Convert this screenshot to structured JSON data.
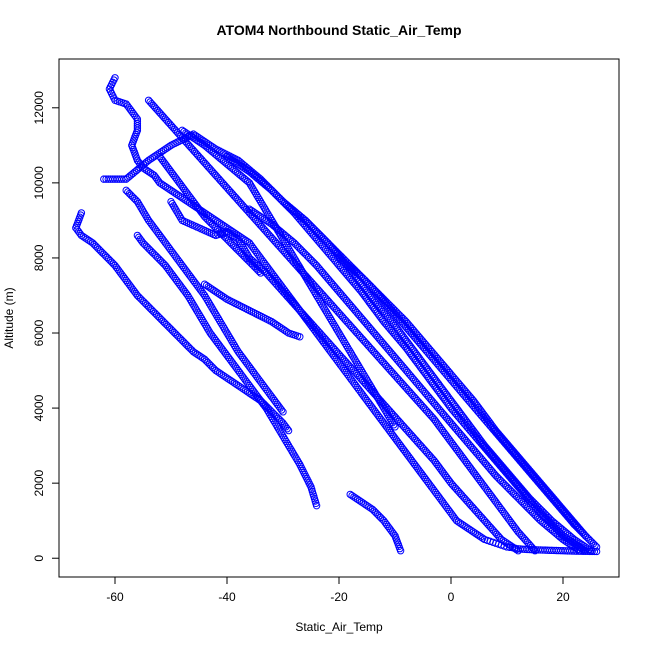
{
  "chart_data": {
    "type": "scatter",
    "title": "ATOM4 Northbound Static_Air_Temp",
    "xlabel": "Static_Air_Temp",
    "ylabel": "Altitude (m)",
    "xlim": [
      -70,
      30
    ],
    "ylim": [
      -500,
      13300
    ],
    "x_ticks": [
      -60,
      -40,
      -20,
      0,
      20
    ],
    "y_ticks": [
      0,
      2000,
      4000,
      6000,
      8000,
      10000,
      12000
    ],
    "grid": false,
    "legend": "none",
    "marker": "open-circle",
    "marker_color": "#0000ff",
    "series": [
      {
        "x": [
          -60,
          -61,
          -60,
          -58,
          -56,
          -56,
          -57,
          -56,
          -55,
          -53,
          -52,
          -50,
          -48,
          -46,
          -44,
          -42,
          -40,
          -38,
          -36,
          -35,
          -34,
          -33,
          -32,
          -31,
          -30,
          -29,
          -28,
          -27,
          -26,
          -25,
          -24,
          -23,
          -22,
          -21,
          -20,
          -19,
          -18,
          -17,
          -16,
          -15,
          -14,
          -13,
          -12,
          -11,
          -10,
          -9,
          -8,
          -7,
          -6,
          -5,
          -4,
          -3,
          -2,
          -1,
          0,
          1,
          2,
          3,
          4,
          5,
          6,
          7,
          8,
          9,
          10,
          11,
          12,
          14,
          16,
          18,
          20,
          22,
          24,
          26
        ],
        "y": [
          12800,
          12500,
          12200,
          12100,
          11700,
          11400,
          11000,
          10600,
          10400,
          10200,
          10000,
          9800,
          9600,
          9400,
          9200,
          9000,
          8800,
          8600,
          8400,
          8200,
          8000,
          7800,
          7600,
          7400,
          7200,
          7000,
          6800,
          6600,
          6400,
          6200,
          6000,
          5800,
          5600,
          5400,
          5200,
          5000,
          4800,
          4600,
          4400,
          4200,
          4000,
          3800,
          3600,
          3400,
          3200,
          3000,
          2800,
          2600,
          2400,
          2200,
          2000,
          1800,
          1600,
          1400,
          1200,
          1000,
          900,
          800,
          700,
          600,
          500,
          450,
          400,
          350,
          300,
          280,
          250,
          230,
          220,
          210,
          200,
          190,
          185,
          180
        ]
      },
      {
        "x": [
          -62,
          -58,
          -54,
          -50,
          -46,
          -42,
          -38,
          -34,
          -30,
          -26,
          -22,
          -18,
          -14,
          -10,
          -6,
          -2,
          2,
          6,
          10,
          14,
          18,
          22,
          25
        ],
        "y": [
          10100,
          10100,
          10600,
          11000,
          11300,
          10900,
          10600,
          10100,
          9500,
          9000,
          8400,
          7700,
          6900,
          6200,
          5400,
          4600,
          3800,
          3000,
          2300,
          1600,
          1000,
          500,
          200
        ]
      },
      {
        "x": [
          -54,
          -51,
          -48,
          -45,
          -42,
          -39,
          -36,
          -33,
          -30,
          -27,
          -24,
          -21,
          -18,
          -15,
          -12,
          -9,
          -6,
          -3,
          0,
          3,
          6,
          9,
          12,
          15
        ],
        "y": [
          12200,
          11700,
          11200,
          10700,
          10200,
          9700,
          9200,
          8700,
          8200,
          7700,
          7200,
          6700,
          6200,
          5700,
          5200,
          4700,
          4200,
          3700,
          3100,
          2500,
          1900,
          1300,
          700,
          200
        ]
      },
      {
        "x": [
          -50,
          -48,
          -45,
          -42,
          -40,
          -38,
          -36,
          -33,
          -30,
          -27,
          -24,
          -21,
          -18,
          -15,
          -12,
          -9,
          -6,
          -3,
          0,
          3,
          6,
          9,
          12
        ],
        "y": [
          9500,
          9000,
          8800,
          8600,
          8700,
          8500,
          8000,
          7600,
          7100,
          6600,
          6100,
          5600,
          5100,
          4600,
          4100,
          3600,
          3100,
          2600,
          2000,
          1500,
          1000,
          500,
          200
        ]
      },
      {
        "x": [
          -66,
          -67,
          -66,
          -64,
          -62,
          -60,
          -58,
          -56,
          -54,
          -52,
          -50,
          -48,
          -46,
          -44,
          -42,
          -40,
          -38,
          -36,
          -34,
          -32,
          -30,
          -29
        ],
        "y": [
          9200,
          8800,
          8600,
          8400,
          8100,
          7800,
          7400,
          7000,
          6700,
          6400,
          6100,
          5800,
          5500,
          5300,
          5000,
          4800,
          4600,
          4400,
          4200,
          3900,
          3600,
          3400
        ]
      },
      {
        "x": [
          -56,
          -55,
          -53,
          -51,
          -49,
          -47,
          -45,
          -43,
          -41,
          -39,
          -37,
          -35,
          -33,
          -31,
          -29,
          -27,
          -25,
          -24
        ],
        "y": [
          8600,
          8400,
          8100,
          7800,
          7400,
          7000,
          6500,
          6000,
          5600,
          5200,
          4800,
          4400,
          4000,
          3500,
          3000,
          2500,
          1900,
          1400
        ]
      },
      {
        "x": [
          -58,
          -56,
          -54,
          -52,
          -50,
          -48,
          -46,
          -44,
          -42,
          -40,
          -38,
          -36,
          -34,
          -32,
          -30
        ],
        "y": [
          9800,
          9500,
          9000,
          8600,
          8200,
          7800,
          7400,
          7000,
          6500,
          6000,
          5500,
          5100,
          4700,
          4300,
          3900
        ]
      },
      {
        "x": [
          -40,
          -36,
          -32,
          -28,
          -24,
          -20,
          -16,
          -12,
          -8,
          -4,
          0,
          4,
          8,
          12,
          16,
          20,
          24
        ],
        "y": [
          10700,
          10300,
          9800,
          9200,
          8500,
          7800,
          7100,
          6300,
          5600,
          4800,
          4000,
          3300,
          2600,
          1900,
          1200,
          600,
          200
        ]
      },
      {
        "x": [
          -30,
          -26,
          -22,
          -18,
          -14,
          -10,
          -6,
          -2,
          2,
          6,
          10,
          14,
          18,
          22,
          26
        ],
        "y": [
          9500,
          9000,
          8400,
          7800,
          7200,
          6500,
          5800,
          5100,
          4400,
          3700,
          3000,
          2300,
          1600,
          900,
          300
        ]
      },
      {
        "x": [
          -20,
          -16,
          -12,
          -8,
          -4,
          0,
          4,
          8,
          12,
          16,
          20,
          24
        ],
        "y": [
          8000,
          7500,
          6900,
          6300,
          5600,
          4900,
          4200,
          3400,
          2700,
          2000,
          1300,
          600
        ]
      },
      {
        "x": [
          -18,
          -16,
          -14,
          -12,
          -10,
          -9
        ],
        "y": [
          1700,
          1500,
          1300,
          1000,
          600,
          200
        ]
      },
      {
        "x": [
          -44,
          -40,
          -36,
          -32,
          -29,
          -27
        ],
        "y": [
          7300,
          6900,
          6600,
          6300,
          6000,
          5900
        ]
      },
      {
        "x": [
          -48,
          -44,
          -40,
          -36,
          -34,
          -32,
          -30,
          -28,
          -26,
          -24,
          -22,
          -20,
          -18,
          -16,
          -14,
          -12,
          -10
        ],
        "y": [
          11400,
          11000,
          10500,
          10000,
          9500,
          9000,
          8500,
          8000,
          7500,
          7000,
          6500,
          6000,
          5500,
          5000,
          4500,
          4000,
          3500
        ]
      },
      {
        "x": [
          -52,
          -50,
          -48,
          -46,
          -44,
          -42,
          -40,
          -38,
          -36,
          -34
        ],
        "y": [
          10700,
          10300,
          9900,
          9500,
          9100,
          8800,
          8500,
          8200,
          7900,
          7600
        ]
      },
      {
        "x": [
          -36,
          -32,
          -28,
          -24,
          -20,
          -16,
          -12,
          -8,
          -4,
          0,
          4,
          8,
          12,
          16,
          20,
          23
        ],
        "y": [
          9300,
          8900,
          8400,
          7800,
          7100,
          6400,
          5700,
          5000,
          4300,
          3600,
          2900,
          2200,
          1600,
          1000,
          500,
          200
        ]
      }
    ]
  }
}
